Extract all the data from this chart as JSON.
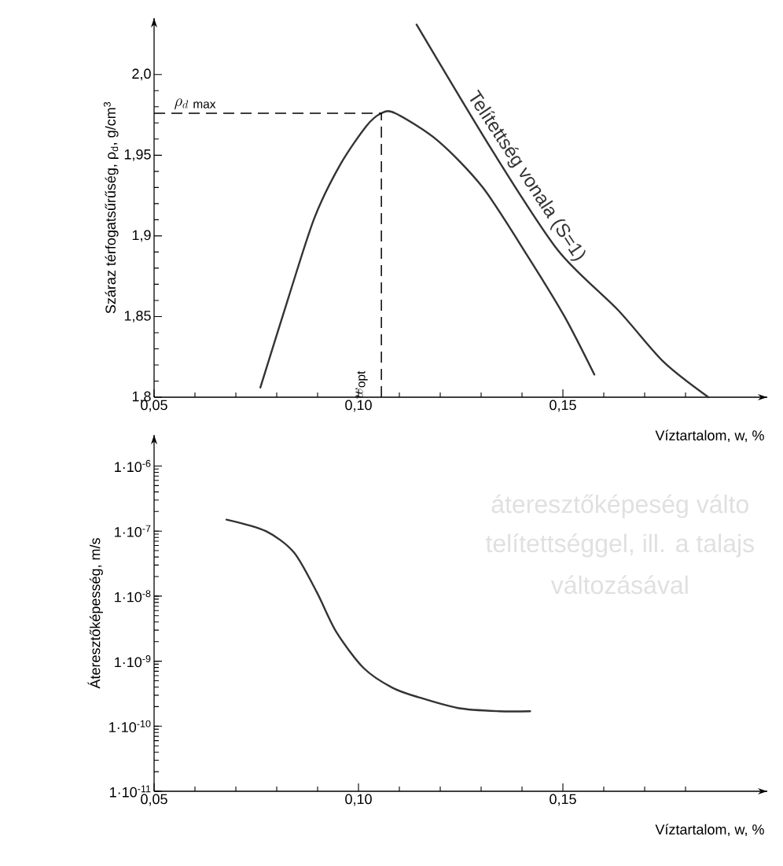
{
  "chart_data": [
    {
      "type": "line",
      "xlabel": "Víztartalom, w, %",
      "ylabel": "Száraz térfogatsűrűség, ρ$_{d}$, g/cm$^{3}$",
      "series": [
        {
          "color": "#333333",
          "x": [
            0.076,
            0.0829,
            0.0892,
            0.0955,
            0.1019,
            0.1056,
            0.109,
            0.1194,
            0.1304,
            0.1415,
            0.1504,
            0.1577
          ],
          "values": [
            1.806,
            1.862,
            1.911,
            1.944,
            1.968,
            1.976,
            1.976,
            1.959,
            1.93,
            1.887,
            1.85,
            1.814
          ]
        },
        {
          "name": "Telítettség vonala (S=1)",
          "color": "#333333",
          "x": [
            0.1142,
            0.1327,
            0.1488,
            0.1635,
            0.1746,
            0.1856
          ],
          "values": [
            2.031,
            1.953,
            1.891,
            1.854,
            1.822,
            1.8
          ]
        }
      ],
      "xlim": [
        0.05,
        0.2
      ],
      "ylim": [
        1.8,
        2.035
      ],
      "xticks": [
        {
          "value": 0.05,
          "label": "0,05"
        },
        {
          "value": 0.06,
          "label": null
        },
        {
          "value": 0.07,
          "label": null
        },
        {
          "value": 0.08,
          "label": null
        },
        {
          "value": 0.09,
          "label": null
        },
        {
          "value": 0.1,
          "label": "0,10"
        },
        {
          "value": 0.11,
          "label": null
        },
        {
          "value": 0.12,
          "label": null
        },
        {
          "value": 0.13,
          "label": null
        },
        {
          "value": 0.14,
          "label": null
        },
        {
          "value": 0.15,
          "label": "0,15"
        },
        {
          "value": 0.16,
          "label": null
        },
        {
          "value": 0.17,
          "label": null
        },
        {
          "value": 0.18,
          "label": null
        }
      ],
      "yticks": [
        {
          "value": 1.8,
          "label": "1,8"
        },
        {
          "value": 1.81,
          "label": null
        },
        {
          "value": 1.82,
          "label": null
        },
        {
          "value": 1.83,
          "label": null
        },
        {
          "value": 1.84,
          "label": null
        },
        {
          "value": 1.85,
          "label": "1,85"
        },
        {
          "value": 1.86,
          "label": null
        },
        {
          "value": 1.87,
          "label": null
        },
        {
          "value": 1.88,
          "label": null
        },
        {
          "value": 1.89,
          "label": null
        },
        {
          "value": 1.9,
          "label": "1,9"
        },
        {
          "value": 1.91,
          "label": null
        },
        {
          "value": 1.92,
          "label": null
        },
        {
          "value": 1.93,
          "label": null
        },
        {
          "value": 1.94,
          "label": null
        },
        {
          "value": 1.95,
          "label": "1,95"
        },
        {
          "value": 1.96,
          "label": null
        },
        {
          "value": 1.97,
          "label": null
        },
        {
          "value": 1.98,
          "label": null
        },
        {
          "value": 1.99,
          "label": null
        },
        {
          "value": 2.0,
          "label": "2,0"
        }
      ],
      "ref_lines": [
        {
          "axis": "y",
          "value": 1.976,
          "label": "\\rho_{d\\ \\mathrm{max}}",
          "line_style": "dashed"
        },
        {
          "axis": "x",
          "value": 0.1056,
          "label": "w_{\\mathrm{opt}}",
          "line_style": "dashed"
        }
      ]
    },
    {
      "type": "line",
      "xlabel": "Víztartalom, w, %",
      "ylabel": "Áteresztőképesség, m/s",
      "log": "y",
      "series": [
        {
          "color": "#333333",
          "x": [
            0.0677,
            0.0773,
            0.0842,
            0.0898,
            0.0946,
            0.1013,
            0.1083,
            0.1146,
            0.1244,
            0.1344,
            0.142
          ],
          "values": [
            1.5e-07,
            1e-07,
            4.7e-08,
            1.15e-08,
            2.8e-09,
            7.8e-10,
            3.9e-10,
            2.8e-10,
            1.9e-10,
            1.7e-10,
            1.7e-10
          ]
        }
      ],
      "xlim": [
        0.05,
        0.2
      ],
      "ylim": [
        1e-11,
        3e-06
      ],
      "xticks": [
        {
          "value": 0.05,
          "label": "0,05"
        },
        {
          "value": 0.06,
          "label": null
        },
        {
          "value": 0.07,
          "label": null
        },
        {
          "value": 0.08,
          "label": null
        },
        {
          "value": 0.09,
          "label": null
        },
        {
          "value": 0.1,
          "label": "0,10"
        },
        {
          "value": 0.11,
          "label": null
        },
        {
          "value": 0.12,
          "label": null
        },
        {
          "value": 0.13,
          "label": null
        },
        {
          "value": 0.14,
          "label": null
        },
        {
          "value": 0.15,
          "label": "0,15"
        },
        {
          "value": 0.16,
          "label": null
        },
        {
          "value": 0.17,
          "label": null
        },
        {
          "value": 0.18,
          "label": null
        }
      ],
      "yticks": [
        {
          "value": 1e-11,
          "label": "1·10$^{-11}$"
        },
        {
          "value": 1e-10,
          "label": "1·10$^{-10}$"
        },
        {
          "value": 1e-09,
          "label": "1·10$^{-9}$"
        },
        {
          "value": 1e-08,
          "label": "1·10$^{-8}$"
        },
        {
          "value": 1e-07,
          "label": "1·10$^{-7}$"
        },
        {
          "value": 1e-06,
          "label": "1·10$^{-6}$"
        }
      ],
      "annotations": [
        "áteresztőképeség válto",
        "telítettséggel, ill. a talajs",
        "változásával"
      ]
    }
  ]
}
